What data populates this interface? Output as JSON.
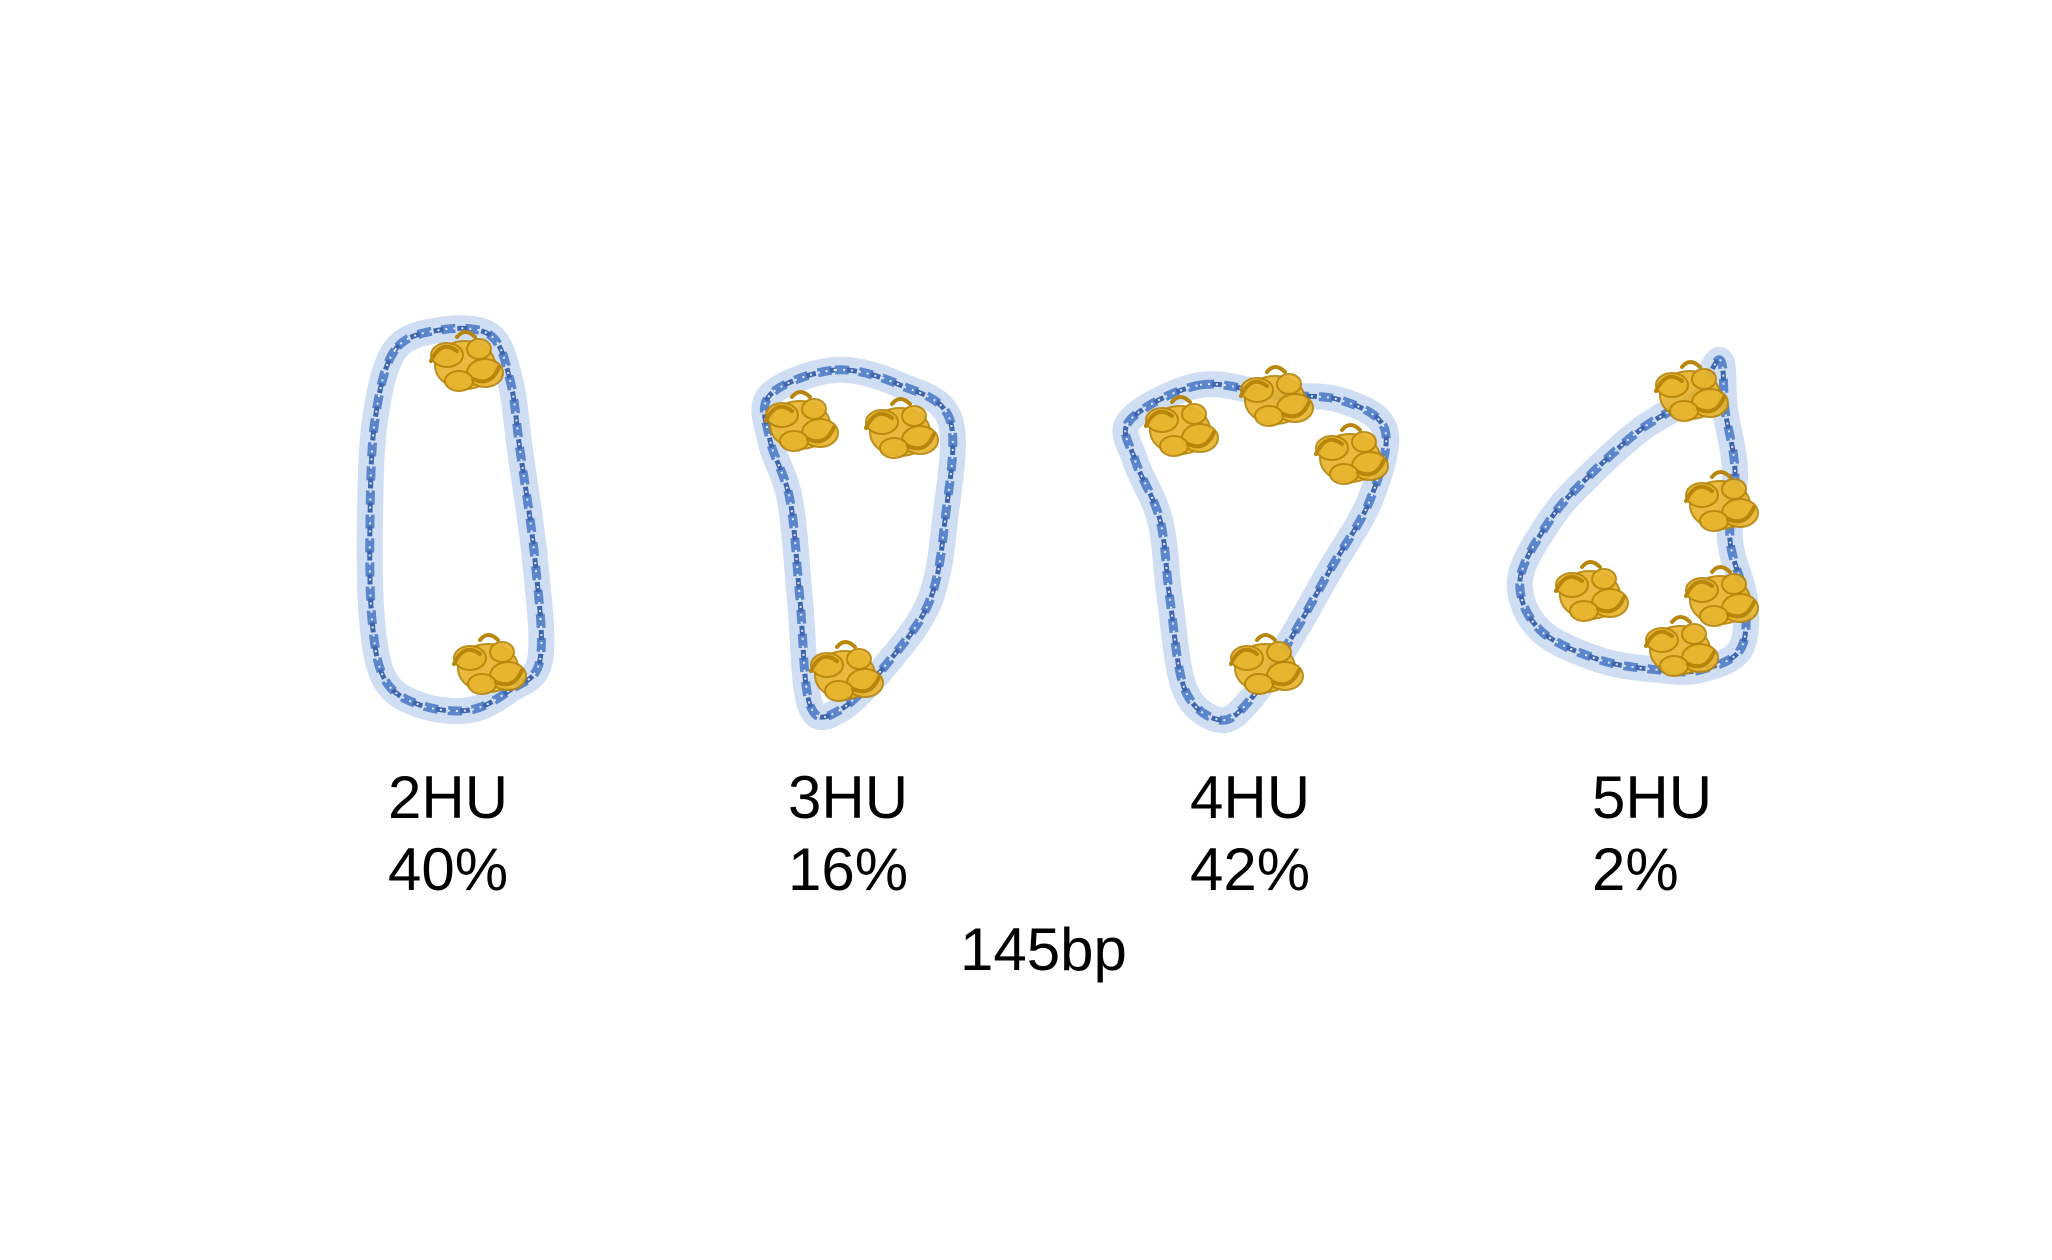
{
  "colors": {
    "dna": "#5b86cc",
    "dna_dark": "#3f66ad",
    "dna_light": "#a9c2ea",
    "protein": "#e8b52e",
    "protein_dark": "#b8860b",
    "background": "#ffffff",
    "text": "#000000"
  },
  "structures": [
    {
      "hu_label": "2HU",
      "percent": "40%",
      "protein_count": 2
    },
    {
      "hu_label": "3HU",
      "percent": "16%",
      "protein_count": 3
    },
    {
      "hu_label": "4HU",
      "percent": "42%",
      "protein_count": 4
    },
    {
      "hu_label": "5HU",
      "percent": "2%",
      "protein_count": 5
    }
  ],
  "dna_length_label": "145bp"
}
